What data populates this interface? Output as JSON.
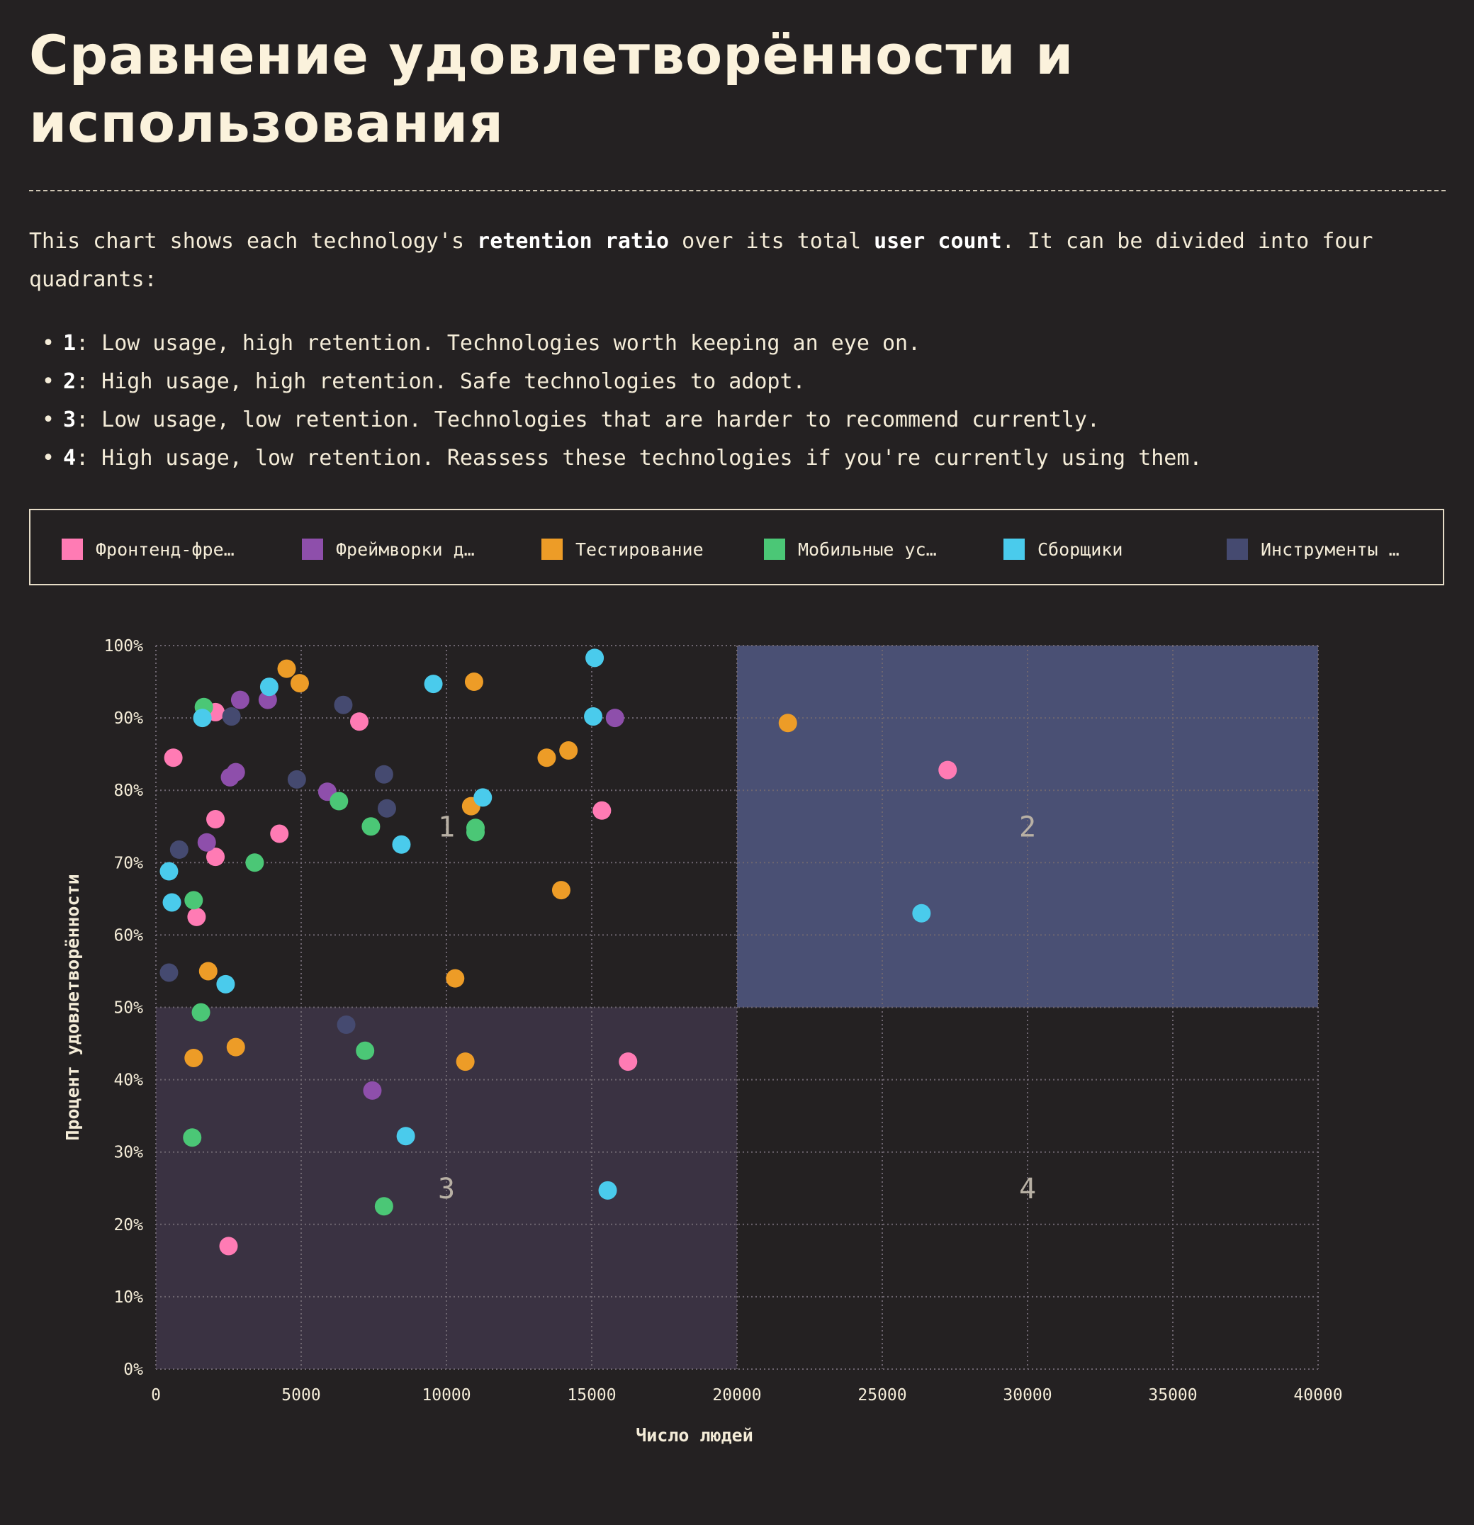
{
  "title": "Сравнение удовлетворённости и использования",
  "intro": {
    "t1": "This chart shows each technology's ",
    "b1": "retention ratio",
    "t2": " over its total ",
    "b2": "user count",
    "t3": ". It can be divided into four quadrants:"
  },
  "quadrant_list": [
    {
      "num": "1",
      "text": ": Low usage, high retention. Technologies worth keeping an eye on."
    },
    {
      "num": "2",
      "text": ": High usage, high retention. Safe technologies to adopt."
    },
    {
      "num": "3",
      "text": ": Low usage, low retention. Technologies that are harder to recommend currently."
    },
    {
      "num": "4",
      "text": ": High usage, low retention. Reassess these technologies if you're currently using them."
    }
  ],
  "legend": [
    {
      "label": "Фронтенд-фре…",
      "color": "#ff7bb4"
    },
    {
      "label": "Фреймворки д…",
      "color": "#8e4fab"
    },
    {
      "label": "Тестирование",
      "color": "#ed9c27"
    },
    {
      "label": "Мобильные ус…",
      "color": "#4bc776"
    },
    {
      "label": "Сборщики",
      "color": "#4acbec"
    },
    {
      "label": "Инструменты …",
      "color": "#454a70"
    }
  ],
  "chart_data": {
    "type": "scatter",
    "xlabel": "Число людей",
    "ylabel": "Процент удовлетворённости",
    "xlim": [
      0,
      40000
    ],
    "ylim": [
      0,
      100
    ],
    "x_ticks": [
      0,
      5000,
      10000,
      15000,
      20000,
      25000,
      30000,
      35000,
      40000
    ],
    "y_ticks": [
      0,
      10,
      20,
      30,
      40,
      50,
      60,
      70,
      80,
      90,
      100
    ],
    "y_tick_suffix": "%",
    "grid": true,
    "quadrant_split": {
      "x": 20000,
      "y": 50
    },
    "quadrant_labels": [
      "1",
      "2",
      "3",
      "4"
    ],
    "series": [
      {
        "color": "#ff7bb4",
        "points": [
          [
            600,
            84.5
          ],
          [
            2050,
            90.8
          ],
          [
            2050,
            76
          ],
          [
            2050,
            70.8
          ],
          [
            1400,
            62.5
          ],
          [
            4250,
            74
          ],
          [
            7000,
            89.5
          ],
          [
            15350,
            77.2
          ],
          [
            27250,
            82.8
          ],
          [
            16250,
            42.5
          ],
          [
            2500,
            17
          ]
        ]
      },
      {
        "color": "#8e4fab",
        "points": [
          [
            2900,
            92.5
          ],
          [
            3850,
            92.5
          ],
          [
            2550,
            81.8
          ],
          [
            2750,
            82.5
          ],
          [
            1750,
            72.8
          ],
          [
            5900,
            79.8
          ],
          [
            15800,
            90
          ],
          [
            7450,
            38.5
          ]
        ]
      },
      {
        "color": "#ed9c27",
        "points": [
          [
            4500,
            96.8
          ],
          [
            4950,
            94.8
          ],
          [
            10950,
            95
          ],
          [
            13450,
            84.5
          ],
          [
            14200,
            85.5
          ],
          [
            10850,
            77.8
          ],
          [
            13950,
            66.2
          ],
          [
            21750,
            89.3
          ],
          [
            10300,
            54
          ],
          [
            1800,
            55
          ],
          [
            1300,
            43
          ],
          [
            2750,
            44.5
          ],
          [
            10650,
            42.5
          ]
        ]
      },
      {
        "color": "#4bc776",
        "points": [
          [
            1650,
            91.5
          ],
          [
            3400,
            70
          ],
          [
            6300,
            78.5
          ],
          [
            7400,
            75
          ],
          [
            11000,
            74.8
          ],
          [
            11000,
            74.2
          ],
          [
            1300,
            64.8
          ],
          [
            1550,
            49.3
          ],
          [
            7200,
            44
          ],
          [
            1250,
            32
          ],
          [
            7850,
            22.5
          ]
        ]
      },
      {
        "color": "#4acbec",
        "points": [
          [
            3900,
            94.3
          ],
          [
            1600,
            90
          ],
          [
            9550,
            94.7
          ],
          [
            15100,
            98.3
          ],
          [
            15050,
            90.2
          ],
          [
            11250,
            79
          ],
          [
            8450,
            72.5
          ],
          [
            450,
            68.8
          ],
          [
            550,
            64.5
          ],
          [
            2400,
            53.2
          ],
          [
            26350,
            63
          ],
          [
            8600,
            32.2
          ],
          [
            15550,
            24.7
          ]
        ]
      },
      {
        "color": "#454a70",
        "points": [
          [
            2600,
            90.2
          ],
          [
            6450,
            91.8
          ],
          [
            4850,
            81.5
          ],
          [
            7850,
            82.2
          ],
          [
            7950,
            77.5
          ],
          [
            800,
            71.8
          ],
          [
            450,
            54.8
          ],
          [
            6550,
            47.6
          ]
        ]
      }
    ]
  },
  "colors": {
    "background": "#242122",
    "text": "#f4ecd8",
    "quadrant_high": "#4a5074",
    "quadrant_low": "#3a3242",
    "grid": "#6e6670"
  }
}
